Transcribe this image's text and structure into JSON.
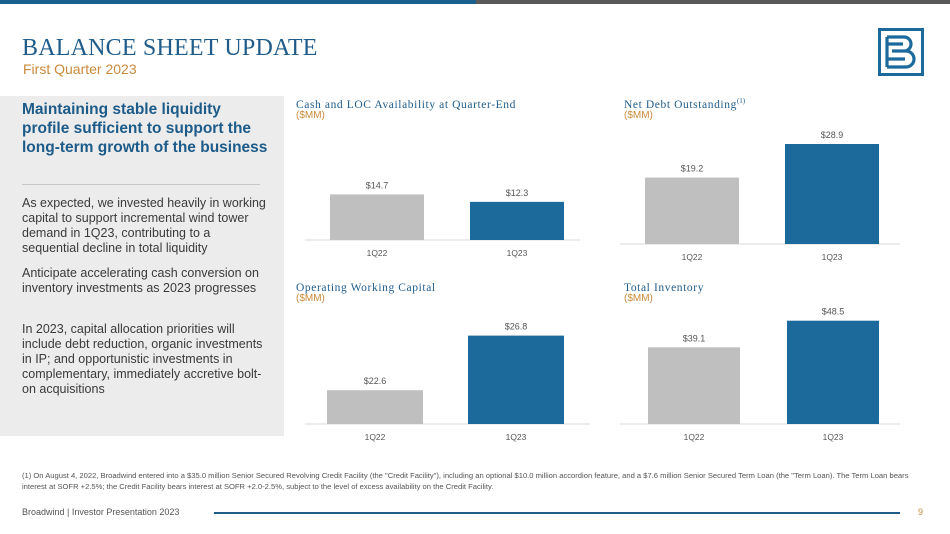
{
  "header": {
    "title": "BALANCE SHEET UPDATE",
    "subtitle": "First Quarter 2023"
  },
  "colors": {
    "brand_blue": "#1c6a9c",
    "bar_gray": "#bfbfbf",
    "accent_orange": "#c98a3a"
  },
  "left": {
    "heading": "Maintaining stable liquidity profile sufficient to support the long-term growth of the business",
    "paragraphs": [
      "As expected, we invested heavily in working capital to support incremental wind tower demand in 1Q23, contributing to a sequential decline in total liquidity",
      "Anticipate accelerating cash conversion on inventory investments as 2023 progresses",
      "In 2023, capital allocation priorities will include debt reduction, organic investments in IP; and opportunistic investments in complementary, immediately accretive bolt-on acquisitions"
    ]
  },
  "charts": [
    {
      "title": "Cash and LOC Availability at Quarter-End",
      "footnote_marker": "",
      "unit": "($MM)"
    },
    {
      "title": "Net Debt Outstanding",
      "footnote_marker": "(1)",
      "unit": "($MM)"
    },
    {
      "title": "Operating Working Capital",
      "footnote_marker": "",
      "unit": "($MM)"
    },
    {
      "title": "Total Inventory",
      "footnote_marker": "",
      "unit": "($MM)"
    }
  ],
  "chart_data": [
    {
      "type": "bar",
      "title": "Cash and LOC Availability at Quarter-End",
      "ylabel": "($MM)",
      "categories": [
        "1Q22",
        "1Q23"
      ],
      "values": [
        14.7,
        12.3
      ],
      "labels": [
        "$14.7",
        "$12.3"
      ],
      "ylim": [
        0,
        30
      ]
    },
    {
      "type": "bar",
      "title": "Net Debt Outstanding(1)",
      "ylabel": "($MM)",
      "categories": [
        "1Q22",
        "1Q23"
      ],
      "values": [
        19.2,
        28.9
      ],
      "labels": [
        "$19.2",
        "$28.9"
      ],
      "ylim": [
        0,
        30
      ]
    },
    {
      "type": "bar",
      "title": "Operating Working Capital",
      "ylabel": "($MM)",
      "categories": [
        "1Q22",
        "1Q23"
      ],
      "values": [
        22.6,
        26.8
      ],
      "labels": [
        "$22.6",
        "$26.8"
      ],
      "ylim": [
        20,
        27
      ]
    },
    {
      "type": "bar",
      "title": "Total Inventory",
      "ylabel": "($MM)",
      "categories": [
        "1Q22",
        "1Q23"
      ],
      "values": [
        39.1,
        48.5
      ],
      "labels": [
        "$39.1",
        "$48.5"
      ],
      "ylim": [
        12,
        49
      ]
    }
  ],
  "footnote": "(1) On August 4, 2022, Broadwind entered into a $35.0 million Senior Secured Revolving Credit Facility (the \"Credit Facility\"), including an optional $10.0 million accordion feature, and a $7.6 million Senior Secured Term Loan (the \"Term Loan). The Term Loan bears interest at SOFR +2.5%; the Credit Facility bears interest at SOFR +2.0-2.5%, subject to the level of excess availability on the Credit Facility.",
  "footer": {
    "text": "Broadwind | Investor Presentation 2023",
    "page": "9"
  }
}
